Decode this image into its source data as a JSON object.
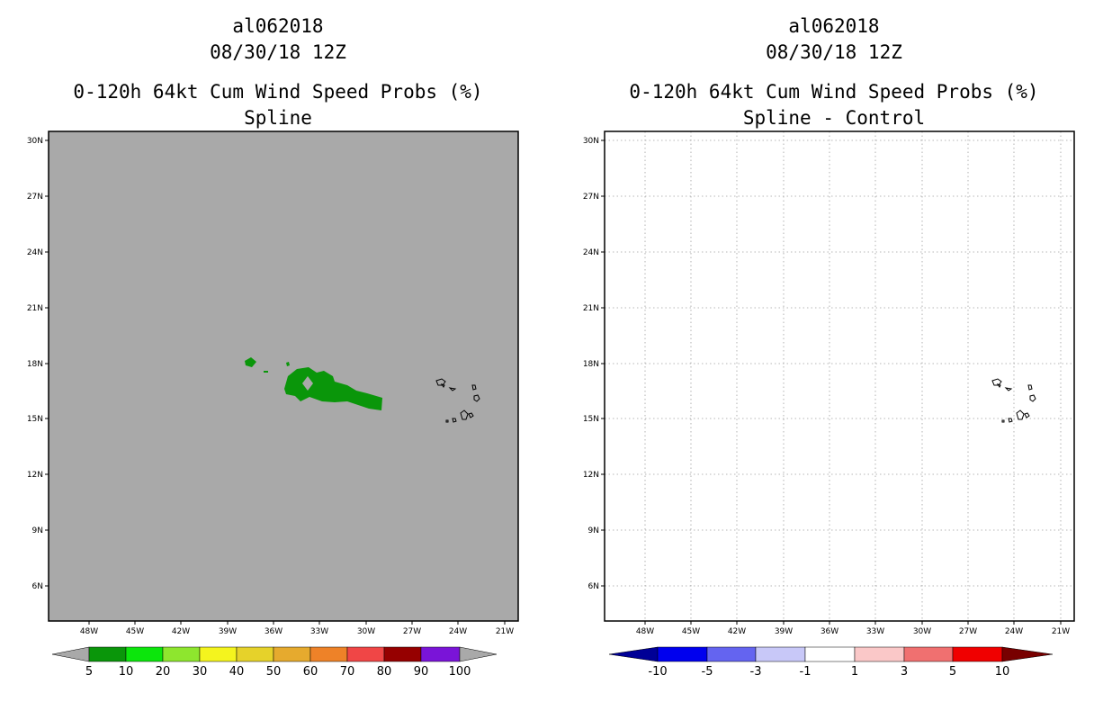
{
  "panels": [
    {
      "title_id": "al062018",
      "title_date": "08/30/18 12Z",
      "title_product": "0-120h 64kt Cum Wind Speed Probs (%)",
      "title_method": "Spline",
      "colors": {
        "background": "#a9a9a9",
        "probability_fill": "#0a960a"
      },
      "colorbar": {
        "colors": [
          "#0a960a",
          "#0ce60c",
          "#8ee62e",
          "#f4f41e",
          "#e6d22a",
          "#e6aa2e",
          "#ee8228",
          "#f04646",
          "#960000",
          "#7a14d8"
        ],
        "labels": [
          "5",
          "10",
          "20",
          "30",
          "40",
          "50",
          "60",
          "70",
          "80",
          "90",
          "100"
        ],
        "end_color": "#a9a9a9"
      }
    },
    {
      "title_id": "al062018",
      "title_date": "08/30/18 12Z",
      "title_product": "0-120h 64kt Cum Wind Speed Probs (%)",
      "title_method": "Spline - Control",
      "colors": {
        "background": "#ffffff",
        "grid": "#a0a0a0"
      },
      "colorbar": {
        "colors": [
          "#0000ee",
          "#6464f0",
          "#c8c8f8",
          "#ffffff",
          "#fac8c8",
          "#f07070",
          "#f00000"
        ],
        "labels": [
          "-10",
          "-5",
          "-3",
          "-1",
          "1",
          "3",
          "5",
          "10"
        ],
        "end_colors": [
          "#000096",
          "#780000"
        ]
      }
    }
  ],
  "axes": {
    "lat_labels": [
      "30N",
      "27N",
      "24N",
      "21N",
      "18N",
      "15N",
      "12N",
      "9N",
      "6N"
    ],
    "lon_labels": [
      "48W",
      "45W",
      "42W",
      "39W",
      "36W",
      "33W",
      "30W",
      "27W",
      "24W",
      "21W"
    ]
  }
}
